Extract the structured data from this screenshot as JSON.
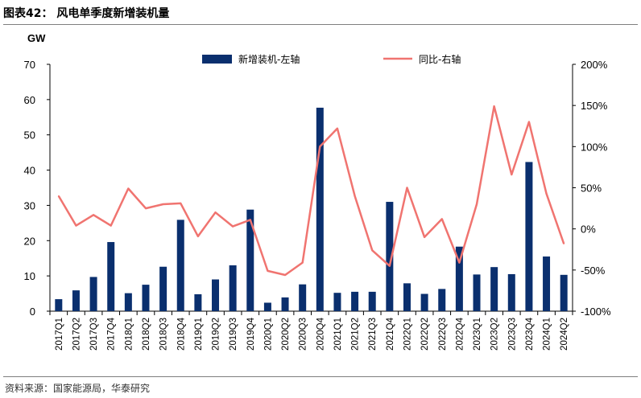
{
  "figure": {
    "title": "图表42：  风电单季度新增装机量",
    "source": "资料来源：国家能源局，华泰研究"
  },
  "chart_data": {
    "type": "bar",
    "title": "",
    "left_axis_unit": "GW",
    "categories": [
      "2017Q1",
      "2017Q2",
      "2017Q3",
      "2017Q4",
      "2018Q1",
      "2018Q2",
      "2018Q3",
      "2018Q4",
      "2019Q1",
      "2019Q2",
      "2019Q3",
      "2019Q4",
      "2020Q1",
      "2020Q2",
      "2020Q3",
      "2020Q4",
      "2021Q1",
      "2021Q2",
      "2021Q3",
      "2021Q4",
      "2022Q1",
      "2022Q2",
      "2022Q3",
      "2022Q4",
      "2023Q1",
      "2023Q2",
      "2023Q3",
      "2023Q4",
      "2024Q1",
      "2024Q2"
    ],
    "series": [
      {
        "name": "新增装机-左轴",
        "type": "bar",
        "axis": "left",
        "color": "#0a2f6e",
        "values": [
          3.4,
          5.9,
          9.7,
          19.6,
          5.1,
          7.5,
          12.6,
          25.9,
          4.8,
          9.0,
          13.0,
          28.8,
          2.4,
          3.9,
          7.6,
          57.7,
          5.2,
          5.5,
          5.5,
          31.0,
          7.9,
          4.9,
          6.3,
          18.3,
          10.4,
          12.5,
          10.5,
          42.3,
          15.5,
          10.3
        ]
      },
      {
        "name": "同比-右轴",
        "type": "line",
        "axis": "right",
        "color": "#f07470",
        "values": [
          40,
          4,
          17,
          4,
          49,
          25,
          30,
          31,
          -9,
          20,
          3,
          11,
          -51,
          -56,
          -41,
          100,
          122,
          40,
          -26,
          -45,
          50,
          -10,
          12,
          -41,
          30,
          149,
          66,
          130,
          43,
          -18
        ]
      }
    ],
    "y_left": {
      "min": 0,
      "max": 70,
      "step": 10,
      "ticks": [
        "0",
        "10",
        "20",
        "30",
        "40",
        "50",
        "60",
        "70"
      ]
    },
    "y_right": {
      "min": -100,
      "max": 200,
      "step": 50,
      "ticks": [
        "-100%",
        "-50%",
        "0%",
        "50%",
        "100%",
        "150%",
        "200%"
      ]
    },
    "grid": false,
    "legend_position": "top"
  }
}
